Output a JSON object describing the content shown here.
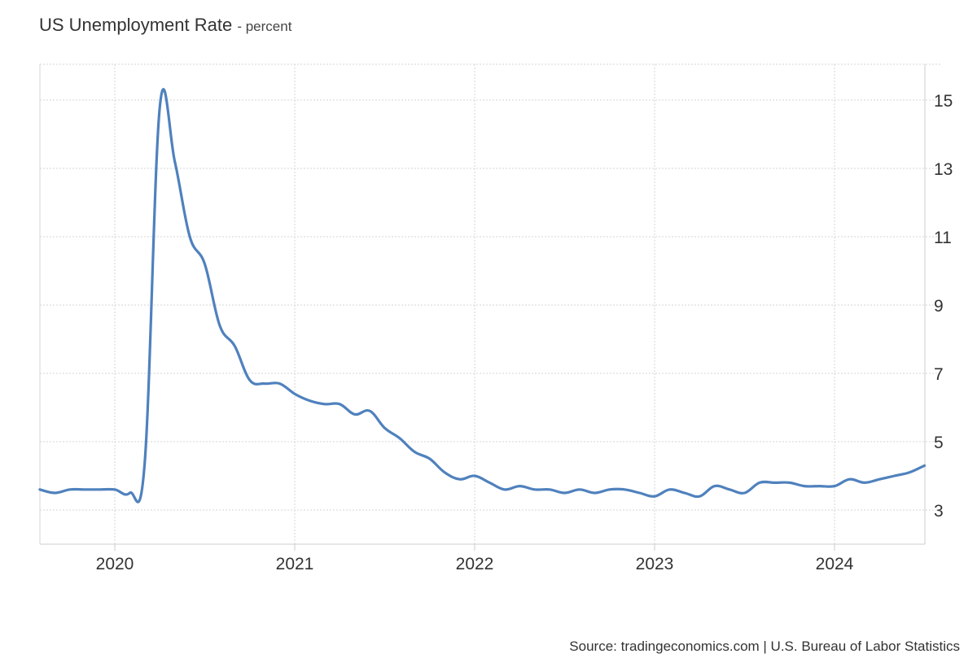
{
  "title": "US Unemployment Rate",
  "subtitle": "- percent",
  "source": "Source: tradingeconomics.com | U.S. Bureau of Labor Statistics",
  "colors": {
    "line": "#4f81bd",
    "grid": "#d6d6d6",
    "axis": "#cccccc",
    "text": "#333333"
  },
  "chart_data": {
    "type": "line",
    "title": "US Unemployment Rate",
    "ylabel": "percent",
    "xlabel": "",
    "x_tick_labels": [
      "2020",
      "2021",
      "2022",
      "2023",
      "2024"
    ],
    "y_ticks": [
      3,
      5,
      7,
      9,
      11,
      13,
      15
    ],
    "ylim": [
      2,
      16
    ],
    "xlim": [
      "2019-08",
      "2024-07"
    ],
    "y_axis_position": "right",
    "grid": true,
    "series": [
      {
        "x": [
          "2019-08",
          "2019-09",
          "2019-10",
          "2019-11",
          "2019-12",
          "2020-01",
          "2020-02",
          "2020-03",
          "2020-04",
          "2020-05",
          "2020-06",
          "2020-07",
          "2020-08",
          "2020-09",
          "2020-10",
          "2020-11",
          "2020-12",
          "2021-01",
          "2021-02",
          "2021-03",
          "2021-04",
          "2021-05",
          "2021-06",
          "2021-07",
          "2021-08",
          "2021-09",
          "2021-10",
          "2021-11",
          "2021-12",
          "2022-01",
          "2022-02",
          "2022-03",
          "2022-04",
          "2022-05",
          "2022-06",
          "2022-07",
          "2022-08",
          "2022-09",
          "2022-10",
          "2022-11",
          "2022-12",
          "2023-01",
          "2023-02",
          "2023-03",
          "2023-04",
          "2023-05",
          "2023-06",
          "2023-07",
          "2023-08",
          "2023-09",
          "2023-10",
          "2023-11",
          "2023-12",
          "2024-01",
          "2024-02",
          "2024-03",
          "2024-04",
          "2024-05",
          "2024-06",
          "2024-07"
        ],
        "values": [
          3.6,
          3.5,
          3.6,
          3.6,
          3.6,
          3.6,
          3.5,
          4.4,
          14.8,
          13.2,
          11.0,
          10.2,
          8.4,
          7.8,
          6.8,
          6.7,
          6.7,
          6.4,
          6.2,
          6.1,
          6.1,
          5.8,
          5.9,
          5.4,
          5.1,
          4.7,
          4.5,
          4.1,
          3.9,
          4.0,
          3.8,
          3.6,
          3.7,
          3.6,
          3.6,
          3.5,
          3.6,
          3.5,
          3.6,
          3.6,
          3.5,
          3.4,
          3.6,
          3.5,
          3.4,
          3.7,
          3.6,
          3.5,
          3.8,
          3.8,
          3.8,
          3.7,
          3.7,
          3.7,
          3.9,
          3.8,
          3.9,
          4.0,
          4.1,
          4.3
        ]
      }
    ]
  }
}
